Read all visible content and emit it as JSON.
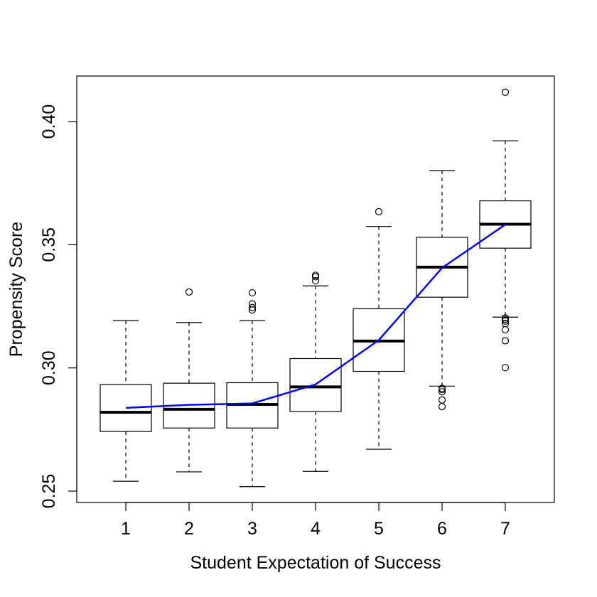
{
  "chart_data": {
    "type": "box",
    "title": "",
    "xlabel": "Student Expectation of Success",
    "ylabel": "Propensity Score",
    "categories": [
      "1",
      "2",
      "3",
      "4",
      "5",
      "6",
      "7"
    ],
    "ylim": [
      0.246,
      0.419
    ],
    "yticks": [
      0.25,
      0.3,
      0.35,
      0.4
    ],
    "ytick_labels": [
      "0.25",
      "0.30",
      "0.35",
      "0.40"
    ],
    "grid": false,
    "legend": "none",
    "boxes": [
      {
        "category": "1",
        "whisker_low": 0.254,
        "q1": 0.2742,
        "median": 0.282,
        "q3": 0.2932,
        "whisker_high": 0.3192,
        "outliers": []
      },
      {
        "category": "2",
        "whisker_low": 0.2578,
        "q1": 0.2756,
        "median": 0.2832,
        "q3": 0.2938,
        "whisker_high": 0.3184,
        "outliers": [
          0.3308
        ]
      },
      {
        "category": "3",
        "whisker_low": 0.2518,
        "q1": 0.2756,
        "median": 0.2852,
        "q3": 0.294,
        "whisker_high": 0.3192,
        "outliers": [
          0.3235,
          0.3245,
          0.326,
          0.3305
        ]
      },
      {
        "category": "4",
        "whisker_low": 0.258,
        "q1": 0.2823,
        "median": 0.2923,
        "q3": 0.3038,
        "whisker_high": 0.3333,
        "outliers": [
          0.3354,
          0.337,
          0.3376
        ]
      },
      {
        "category": "5",
        "whisker_low": 0.267,
        "q1": 0.2986,
        "median": 0.3109,
        "q3": 0.324,
        "whisker_high": 0.3574,
        "outliers": [
          0.3634
        ]
      },
      {
        "category": "6",
        "whisker_low": 0.2926,
        "q1": 0.3287,
        "median": 0.3409,
        "q3": 0.353,
        "whisker_high": 0.3801,
        "outliers": [
          0.2843,
          0.287,
          0.2903,
          0.2912,
          0.2917
        ]
      },
      {
        "category": "7",
        "whisker_low": 0.3206,
        "q1": 0.3486,
        "median": 0.3583,
        "q3": 0.3678,
        "whisker_high": 0.3922,
        "outliers": [
          0.3001,
          0.311,
          0.3155,
          0.318,
          0.319,
          0.3197,
          0.3203,
          0.4119
        ]
      }
    ],
    "series": [
      {
        "type": "line",
        "color": "#0000ff",
        "values": [
          0.2838,
          0.285,
          0.2856,
          0.2933,
          0.3113,
          0.3406,
          0.3582
        ]
      }
    ],
    "colors": {
      "box_fill": "#ffffff",
      "box_stroke": "#000000",
      "mean_line": "#0000ff"
    }
  }
}
